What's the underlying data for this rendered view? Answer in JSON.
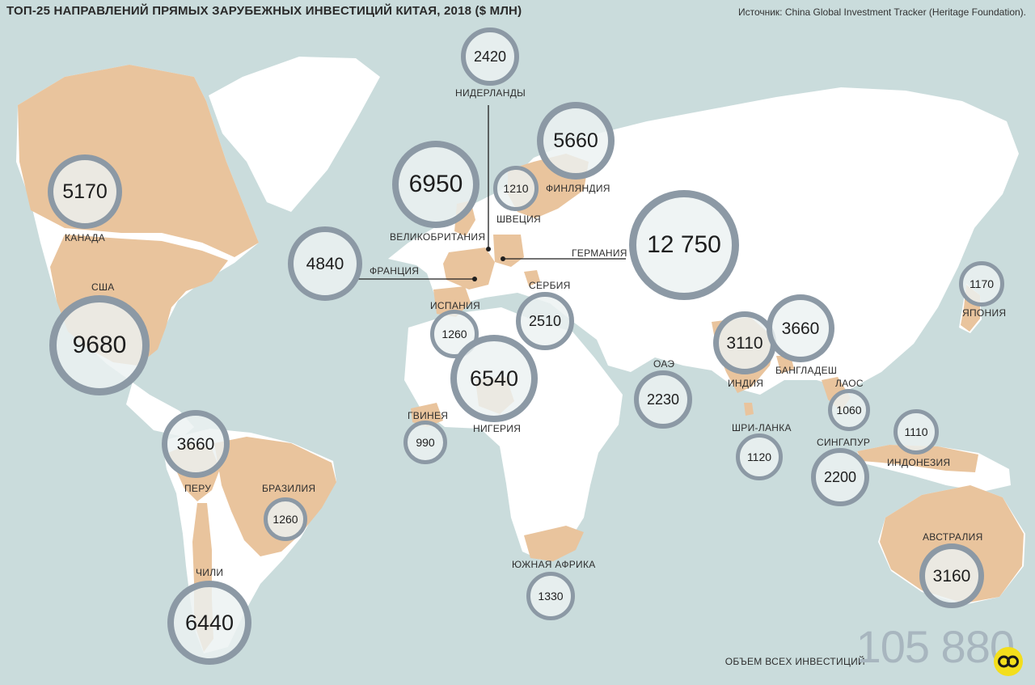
{
  "title": "ТОП-25 НАПРАВЛЕНИЙ ПРЯМЫХ ЗАРУБЕЖНЫХ ИНВЕСТИЦИЙ КИТАЯ, 2018 ($ МЛН)",
  "source": "Источник: China Global Investment Tracker (Heritage Foundation).",
  "total": {
    "label": "ОБЪЕМ ВСЕХ ИНВЕСТИЦИЙ",
    "value": "105 880"
  },
  "colors": {
    "ocean": "#cadcdc",
    "land": "#ffffff",
    "recipient": "#e9c49d",
    "ring": "#8c99a5"
  },
  "countries": [
    {
      "id": "canada",
      "name": "КАНАДА",
      "value": "5170",
      "amount": 5170
    },
    {
      "id": "usa",
      "name": "США",
      "value": "9680",
      "amount": 9680
    },
    {
      "id": "peru",
      "name": "ПЕРУ",
      "value": "3660",
      "amount": 3660
    },
    {
      "id": "brazil",
      "name": "БРАЗИЛИЯ",
      "value": "1260",
      "amount": 1260
    },
    {
      "id": "chile",
      "name": "ЧИЛИ",
      "value": "6440",
      "amount": 6440
    },
    {
      "id": "netherlands",
      "name": "НИДЕРЛАНДЫ",
      "value": "2420",
      "amount": 2420
    },
    {
      "id": "uk",
      "name": "ВЕЛИКОБРИТАНИЯ",
      "value": "6950",
      "amount": 6950
    },
    {
      "id": "sweden",
      "name": "ШВЕЦИЯ",
      "value": "1210",
      "amount": 1210
    },
    {
      "id": "finland",
      "name": "ФИНЛЯНДИЯ",
      "value": "5660",
      "amount": 5660
    },
    {
      "id": "france",
      "name": "ФРАНЦИЯ",
      "value": "4840",
      "amount": 4840
    },
    {
      "id": "germany",
      "name": "ГЕРМАНИЯ",
      "value": "12 750",
      "amount": 12750
    },
    {
      "id": "spain",
      "name": "ИСПАНИЯ",
      "value": "1260",
      "amount": 1260
    },
    {
      "id": "serbia",
      "name": "СЕРБИЯ",
      "value": "2510",
      "amount": 2510
    },
    {
      "id": "nigeria",
      "name": "НИГЕРИЯ",
      "value": "6540",
      "amount": 6540
    },
    {
      "id": "guinea",
      "name": "ГВИНЕЯ",
      "value": "990",
      "amount": 990
    },
    {
      "id": "south-africa",
      "name": "ЮЖНАЯ АФРИКА",
      "value": "1330",
      "amount": 1330
    },
    {
      "id": "uae",
      "name": "ОАЭ",
      "value": "2230",
      "amount": 2230
    },
    {
      "id": "india",
      "name": "ИНДИЯ",
      "value": "3110",
      "amount": 3110
    },
    {
      "id": "bangladesh",
      "name": "БАНГЛАДЕШ",
      "value": "3660",
      "amount": 3660
    },
    {
      "id": "sri-lanka",
      "name": "ШРИ-ЛАНКА",
      "value": "1120",
      "amount": 1120
    },
    {
      "id": "laos",
      "name": "ЛАОС",
      "value": "1060",
      "amount": 1060
    },
    {
      "id": "singapore",
      "name": "СИНГАПУР",
      "value": "2200",
      "amount": 2200
    },
    {
      "id": "indonesia",
      "name": "ИНДОНЕЗИЯ",
      "value": "1110",
      "amount": 1110
    },
    {
      "id": "japan",
      "name": "ЯПОНИЯ",
      "value": "1170",
      "amount": 1170
    },
    {
      "id": "australia",
      "name": "АВСТРАЛИЯ",
      "value": "3160",
      "amount": 3160
    }
  ]
}
